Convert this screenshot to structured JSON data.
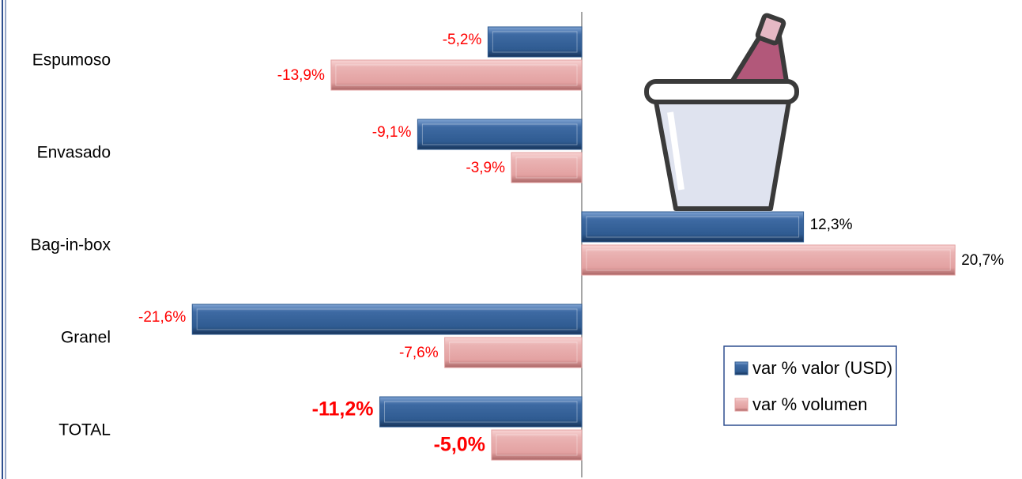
{
  "chart_data": {
    "type": "hbar",
    "categories": [
      "Espumoso",
      "Envasado",
      "Bag-in-box",
      "Granel",
      "TOTAL"
    ],
    "series": [
      {
        "name": "var % valor (USD)",
        "color": "#2f5b91",
        "values": [
          -5.2,
          -9.1,
          12.3,
          -21.6,
          -11.2
        ],
        "value_labels": [
          "-5,2%",
          "-9,1%",
          "12,3%",
          "-21,6%",
          "-11,2%"
        ]
      },
      {
        "name": "var % volumen",
        "color": "#e3a1a1",
        "values": [
          -13.9,
          -3.9,
          20.7,
          -7.6,
          -5.0
        ],
        "value_labels": [
          "-13,9%",
          "-3,9%",
          "20,7%",
          "-7,6%",
          "-5,0%"
        ]
      }
    ],
    "legend": "lower right"
  }
}
